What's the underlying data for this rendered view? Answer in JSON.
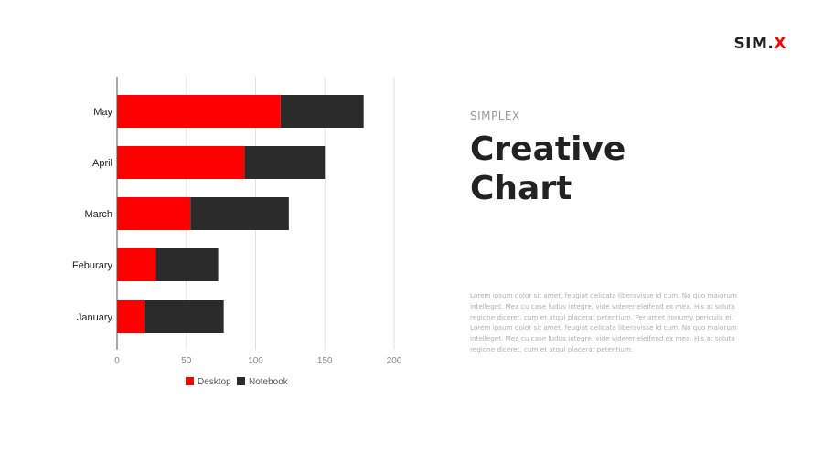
{
  "logo": {
    "main": "SIM.",
    "accent": "X"
  },
  "heading": {
    "subtitle": "SIMPLEX",
    "title_line1": "Creative",
    "title_line2": "Chart"
  },
  "body_text": "Lorem ipsum dolor sit amet, feugiat delicata liberavisse id cum. No quo maiorum intelleget. Mea cu case ludus integre, vide viderer eleifend ex mea. His at soluta regione diceret, cum et atqui placerat petentium. Per amet nonumy periculis ei. Lorem ipsum dolor sit amet, feugiat delicata liberavisse id cum. No quo maiorum intelleget. Mea cu case ludus integre, vide viderer eleifend ex mea. His at soluta regione diceret, cum et atqui placerat petentium.",
  "colors": {
    "accent": "#ff0000",
    "dark": "#2b2b2b"
  },
  "chart_data": {
    "type": "bar",
    "orientation": "horizontal",
    "stacked": true,
    "categories": [
      "January",
      "Feburary",
      "March",
      "April",
      "May"
    ],
    "series": [
      {
        "name": "Desktop",
        "color": "#ff0000",
        "values": [
          20,
          28,
          53,
          92,
          118
        ]
      },
      {
        "name": "Notebook",
        "color": "#2b2b2b",
        "values": [
          57,
          45,
          71,
          58,
          60
        ]
      }
    ],
    "xlim": [
      0,
      200
    ],
    "xticks": [
      "0",
      "50",
      "100",
      "150",
      "200"
    ],
    "grid": true,
    "legend": "bottom"
  }
}
